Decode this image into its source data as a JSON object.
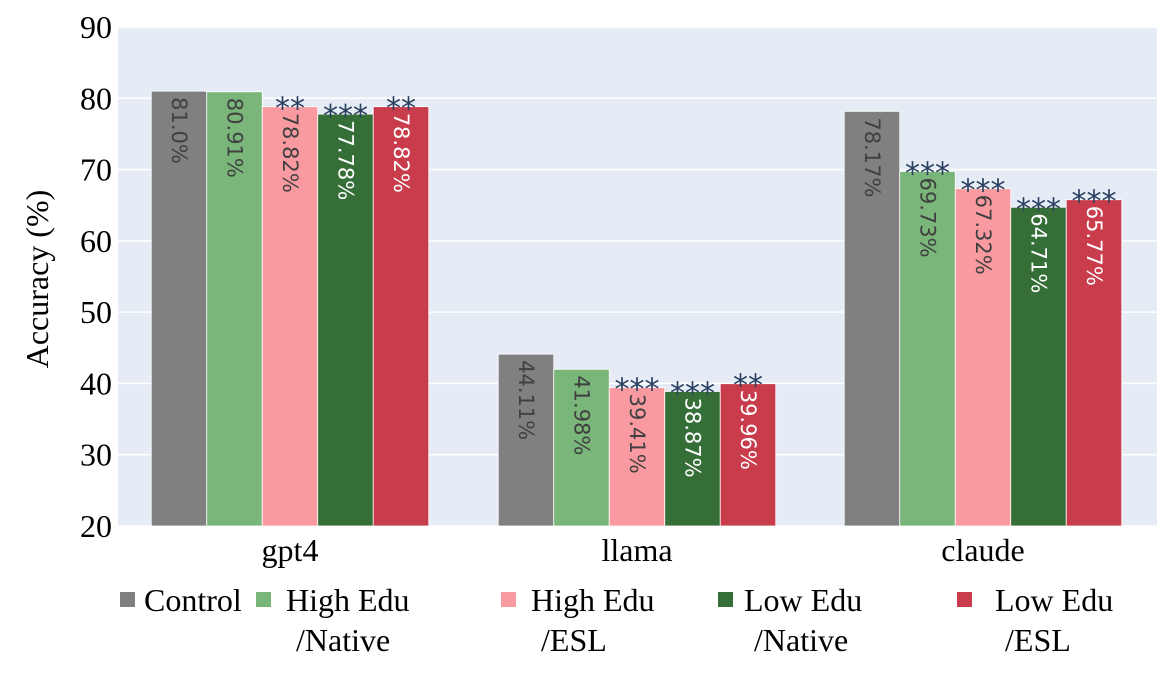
{
  "chart_data": {
    "type": "bar",
    "title": "",
    "xlabel": "",
    "ylabel": "Accuracy (%)",
    "ylim": [
      20,
      90
    ],
    "yticks": [
      "20",
      "30",
      "40",
      "50",
      "60",
      "70",
      "80",
      "90"
    ],
    "categories": [
      "gpt4",
      "llama",
      "claude"
    ],
    "series": [
      {
        "name": "Control",
        "legend_lines": [
          "Control"
        ],
        "color": "#808080",
        "text_color": "#404040",
        "values": [
          81.0,
          44.11,
          78.17
        ],
        "labels": [
          "81.0%",
          "44.11%",
          "78.17%"
        ],
        "sig": [
          "",
          "",
          ""
        ]
      },
      {
        "name": "High Edu /Native",
        "legend_lines": [
          "High Edu",
          "/Native"
        ],
        "color": "#7ab57a",
        "text_color": "#404040",
        "values": [
          80.91,
          41.98,
          69.73
        ],
        "labels": [
          "80.91%",
          "41.98%",
          "69.73%"
        ],
        "sig": [
          "",
          "",
          "***"
        ]
      },
      {
        "name": "High Edu /ESL",
        "legend_lines": [
          "High Edu",
          "/ESL"
        ],
        "color": "#f89aa0",
        "text_color": "#404040",
        "values": [
          78.82,
          39.41,
          67.32
        ],
        "labels": [
          "78.82%",
          "39.41%",
          "67.32%"
        ],
        "sig": [
          "**",
          "***",
          "***"
        ]
      },
      {
        "name": "Low Edu /Native",
        "legend_lines": [
          "Low Edu",
          "/Native"
        ],
        "color": "#356e37",
        "text_color": "#ffffff",
        "values": [
          77.78,
          38.87,
          64.71
        ],
        "labels": [
          "77.78%",
          "38.87%",
          "64.71%"
        ],
        "sig": [
          "***",
          "***",
          "***"
        ]
      },
      {
        "name": "Low Edu /ESL",
        "legend_lines": [
          "Low Edu",
          "/ESL"
        ],
        "color": "#c93c4b",
        "text_color": "#ffffff",
        "values": [
          78.82,
          39.96,
          65.77
        ],
        "labels": [
          "78.82%",
          "39.96%",
          "65.77%"
        ],
        "sig": [
          "**",
          "**",
          "***"
        ]
      }
    ],
    "grid": true,
    "legend_position": "bottom",
    "plot_background": "#e6ecf6",
    "significance_color": "#2a3f5f"
  }
}
